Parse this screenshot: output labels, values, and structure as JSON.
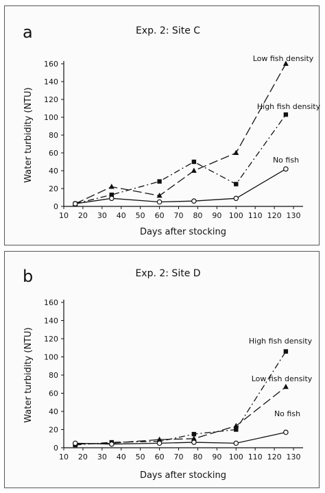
{
  "chart_data": [
    {
      "type": "line",
      "panel_letter": "a",
      "title": "Exp. 2: Site C",
      "xlabel": "Days after stocking",
      "ylabel": "Water turbidity (NTU)",
      "xlim": [
        10,
        135
      ],
      "ylim": [
        0,
        160
      ],
      "xticks": [
        10,
        20,
        30,
        40,
        50,
        60,
        70,
        80,
        90,
        100,
        110,
        120,
        130
      ],
      "yticks": [
        0,
        20,
        40,
        60,
        80,
        100,
        120,
        140,
        160
      ],
      "grid": false,
      "series": [
        {
          "name": "Low fish density",
          "marker": "triangle",
          "dash": "long-dash",
          "x": [
            16,
            35,
            60,
            78,
            100,
            126
          ],
          "y": [
            3,
            22,
            12,
            40,
            60,
            160
          ]
        },
        {
          "name": "High fish density",
          "marker": "square",
          "dash": "dash-dot",
          "x": [
            16,
            35,
            60,
            78,
            100,
            126
          ],
          "y": [
            3,
            13,
            28,
            50,
            25,
            103
          ]
        },
        {
          "name": "No fish",
          "marker": "circle",
          "dash": "solid",
          "x": [
            16,
            35,
            60,
            78,
            100,
            126
          ],
          "y": [
            3,
            9,
            5,
            6,
            9,
            42
          ]
        }
      ]
    },
    {
      "type": "line",
      "panel_letter": "b",
      "title": "Exp. 2: Site D",
      "xlabel": "Days after stocking",
      "ylabel": "Water turbidity (NTU)",
      "xlim": [
        10,
        135
      ],
      "ylim": [
        0,
        160
      ],
      "xticks": [
        10,
        20,
        30,
        40,
        50,
        60,
        70,
        80,
        90,
        100,
        110,
        120,
        130
      ],
      "yticks": [
        0,
        20,
        40,
        60,
        80,
        100,
        120,
        140,
        160
      ],
      "grid": false,
      "series": [
        {
          "name": "High fish density",
          "marker": "square",
          "dash": "dash-dot",
          "x": [
            16,
            35,
            60,
            78,
            100,
            126
          ],
          "y": [
            3,
            6,
            7,
            15,
            20,
            106
          ]
        },
        {
          "name": "Low fish density",
          "marker": "triangle",
          "dash": "long-dash",
          "x": [
            16,
            35,
            60,
            78,
            100,
            126
          ],
          "y": [
            4,
            5,
            9,
            10,
            24,
            67
          ]
        },
        {
          "name": "No fish",
          "marker": "circle",
          "dash": "solid",
          "x": [
            16,
            35,
            60,
            78,
            100,
            126
          ],
          "y": [
            5,
            4,
            5,
            6,
            5,
            17
          ]
        }
      ]
    }
  ]
}
